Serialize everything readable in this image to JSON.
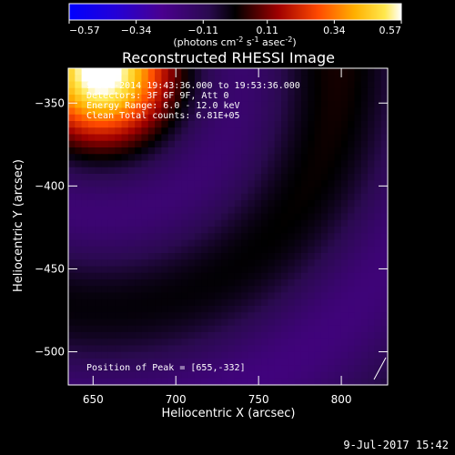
{
  "colorbar": {
    "min": -0.57,
    "max": 0.57,
    "ticks": [
      "-0.57",
      "-0.34",
      "-0.11",
      "0.11",
      "0.34",
      "0.57"
    ],
    "units_main": "(photons cm",
    "units_exp1": "-2",
    "units_mid": " s",
    "units_exp2": "-1",
    "units_mid2": " asec",
    "units_exp3": "-2",
    "units_end": ")",
    "colors": [
      "#0000ff",
      "#2b00c8",
      "#55008e",
      "#3a0c3a",
      "#000000",
      "#8a0000",
      "#ff3b00",
      "#ff9a00",
      "#ffd900",
      "#ffffff"
    ]
  },
  "chart_data": {
    "type": "heatmap",
    "title": "Reconstructed RHESSI Image",
    "xlabel": "Heliocentric X (arcsec)",
    "ylabel": "Heliocentric Y (arcsec)",
    "xlim": [
      635,
      828
    ],
    "ylim": [
      -520,
      -329
    ],
    "x_ticks": [
      650,
      700,
      750,
      800
    ],
    "y_ticks": [
      -350,
      -400,
      -450,
      -500
    ],
    "tick_labels_x": [
      "650",
      "700",
      "750",
      "800"
    ],
    "tick_labels_y": [
      "−350",
      "−400",
      "−450",
      "−500"
    ],
    "peak": [
      655,
      -332
    ],
    "annotations": {
      "line1": "9-Jul-2014 19:43:36.000 to 19:53:36.000",
      "line2": "Detectors: 3F 6F 9F, Att 0",
      "line3": "Energy Range: 6.0 - 12.0 keV",
      "line4": "Clean    Total counts: 6.81E+05",
      "peak_text": "Position of Peak = [655,-332]"
    }
  },
  "footer": {
    "timestamp": "9-Jul-2017 15:42"
  }
}
